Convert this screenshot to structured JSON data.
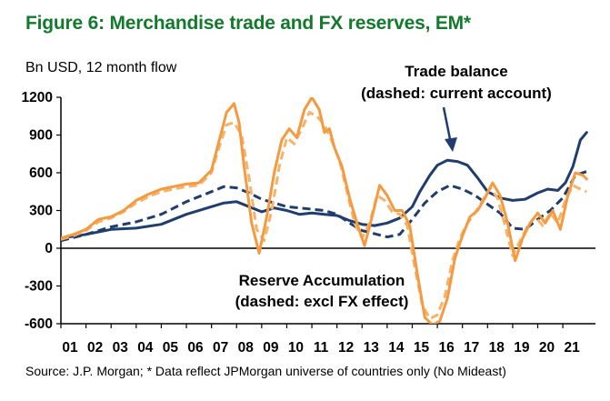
{
  "header": {
    "title": "Figure 6: Merchandise trade and FX reserves, EM*",
    "subtitle": "Bn USD, 12 month flow"
  },
  "footer": {
    "source": "Source: J.P. Morgan; * Data reflect JPMorgan universe of countries only (No Mideast)"
  },
  "colors": {
    "title": "#127a2b",
    "trade": "#1f3d6e",
    "reserves": "#f59a3f",
    "reserves_dashed": "#f7b36b"
  },
  "chart_data": {
    "type": "line",
    "title": "Figure 6: Merchandise trade and FX reserves, EM*",
    "ylabel": "Bn USD, 12 month flow",
    "ylim": [
      -600,
      1200
    ],
    "yticks": [
      "1200",
      "900",
      "600",
      "300",
      "0",
      "-300",
      "-600"
    ],
    "xlim": [
      2001,
      2022.3
    ],
    "xticks": [
      "01",
      "02",
      "03",
      "04",
      "05",
      "06",
      "07",
      "08",
      "09",
      "10",
      "11",
      "12",
      "13",
      "14",
      "15",
      "16",
      "17",
      "18",
      "19",
      "20",
      "21"
    ],
    "annotations": {
      "trade_line1": "Trade balance",
      "trade_line2": "(dashed: current account)",
      "reserve_line1": "Reserve Accumulation",
      "reserve_line2": "(dashed: excl FX effect)"
    },
    "series": [
      {
        "name": "Trade balance",
        "style": "solid",
        "color": "#1f3d6e",
        "x": [
          2001,
          2002,
          2003,
          2004,
          2005,
          2006,
          2007,
          2007.5,
          2008,
          2008.5,
          2009,
          2009.5,
          2010,
          2010.5,
          2011,
          2011.5,
          2012,
          2012.5,
          2013,
          2013.5,
          2014,
          2014.5,
          2015,
          2015.3,
          2015.7,
          2016,
          2016.4,
          2016.8,
          2017.2,
          2017.6,
          2018,
          2018.5,
          2019,
          2019.5,
          2020,
          2020.4,
          2020.8,
          2021.1,
          2021.4,
          2021.7,
          2021.95
        ],
        "y": [
          80,
          110,
          150,
          160,
          190,
          270,
          330,
          360,
          370,
          330,
          290,
          320,
          300,
          270,
          280,
          270,
          260,
          220,
          190,
          180,
          200,
          240,
          330,
          450,
          580,
          660,
          700,
          690,
          660,
          560,
          450,
          400,
          380,
          390,
          440,
          470,
          460,
          520,
          650,
          860,
          920
        ]
      },
      {
        "name": "Current account",
        "style": "dashed",
        "color": "#1f3d6e",
        "x": [
          2001,
          2002,
          2003,
          2004,
          2005,
          2006,
          2007,
          2007.5,
          2008,
          2008.5,
          2009,
          2010,
          2011,
          2011.5,
          2012,
          2012.5,
          2013,
          2014,
          2014.5,
          2015,
          2015.5,
          2016,
          2016.5,
          2017,
          2017.5,
          2018,
          2018.5,
          2019,
          2019.5,
          2020,
          2020.5,
          2021,
          2021.5,
          2021.95
        ],
        "y": [
          60,
          110,
          170,
          210,
          270,
          370,
          450,
          490,
          480,
          440,
          390,
          330,
          310,
          300,
          270,
          200,
          140,
          90,
          110,
          230,
          360,
          450,
          500,
          470,
          420,
          350,
          280,
          160,
          150,
          230,
          300,
          400,
          580,
          610
        ]
      },
      {
        "name": "Reserve accumulation",
        "style": "solid",
        "color": "#f59a3f",
        "x": [
          2001,
          2001.5,
          2002,
          2002.5,
          2003,
          2003.5,
          2004,
          2004.5,
          2005,
          2005.5,
          2006,
          2006.5,
          2007,
          2007.3,
          2007.6,
          2007.9,
          2008.1,
          2008.3,
          2008.6,
          2008.9,
          2009.2,
          2009.5,
          2009.8,
          2010.1,
          2010.4,
          2010.7,
          2011,
          2011.3,
          2011.5,
          2011.7,
          2011.9,
          2012.2,
          2012.5,
          2012.8,
          2013.1,
          2013.4,
          2013.7,
          2014,
          2014.3,
          2014.6,
          2014.9,
          2015.2,
          2015.5,
          2015.8,
          2016.1,
          2016.4,
          2016.7,
          2017,
          2017.3,
          2017.6,
          2017.9,
          2018.2,
          2018.5,
          2018.8,
          2019.1,
          2019.4,
          2019.7,
          2020,
          2020.3,
          2020.6,
          2020.9,
          2021.2,
          2021.5,
          2021.8,
          2021.95
        ],
        "y": [
          80,
          110,
          150,
          230,
          250,
          300,
          380,
          430,
          470,
          490,
          510,
          520,
          620,
          850,
          1080,
          1150,
          1000,
          650,
          200,
          -40,
          250,
          600,
          860,
          950,
          880,
          1100,
          1200,
          1100,
          920,
          950,
          800,
          650,
          400,
          200,
          20,
          250,
          500,
          420,
          300,
          300,
          180,
          -200,
          -550,
          -610,
          -580,
          -400,
          -80,
          100,
          250,
          300,
          400,
          520,
          420,
          200,
          -100,
          80,
          200,
          280,
          200,
          300,
          150,
          420,
          600,
          580,
          550
        ]
      },
      {
        "name": "Reserve accumulation excl FX effect",
        "style": "dashed",
        "color": "#f7b36b",
        "x": [
          2001,
          2001.5,
          2002,
          2002.5,
          2003,
          2003.5,
          2004,
          2004.5,
          2005,
          2005.5,
          2006,
          2006.5,
          2007,
          2007.3,
          2007.6,
          2007.9,
          2008.2,
          2008.5,
          2008.8,
          2009.1,
          2009.4,
          2009.7,
          2010,
          2010.3,
          2010.6,
          2010.9,
          2011.2,
          2011.5,
          2011.8,
          2012.1,
          2012.4,
          2012.7,
          2013,
          2013.3,
          2013.6,
          2013.9,
          2014.2,
          2014.5,
          2014.8,
          2015.1,
          2015.4,
          2015.7,
          2016,
          2016.3,
          2016.6,
          2016.9,
          2017.2,
          2017.5,
          2017.8,
          2018.1,
          2018.4,
          2018.7,
          2019,
          2019.3,
          2019.6,
          2019.9,
          2020.2,
          2020.5,
          2020.8,
          2021.1,
          2021.4,
          2021.7,
          2021.95
        ],
        "y": [
          70,
          100,
          140,
          210,
          240,
          290,
          360,
          410,
          450,
          470,
          490,
          500,
          600,
          800,
          980,
          1000,
          900,
          560,
          150,
          60,
          300,
          650,
          880,
          830,
          950,
          1080,
          1050,
          980,
          850,
          700,
          450,
          200,
          80,
          200,
          420,
          380,
          290,
          270,
          180,
          -150,
          -450,
          -560,
          -530,
          -380,
          -100,
          80,
          200,
          280,
          380,
          480,
          400,
          180,
          -60,
          60,
          180,
          250,
          180,
          280,
          200,
          380,
          500,
          470,
          450
        ]
      }
    ]
  }
}
